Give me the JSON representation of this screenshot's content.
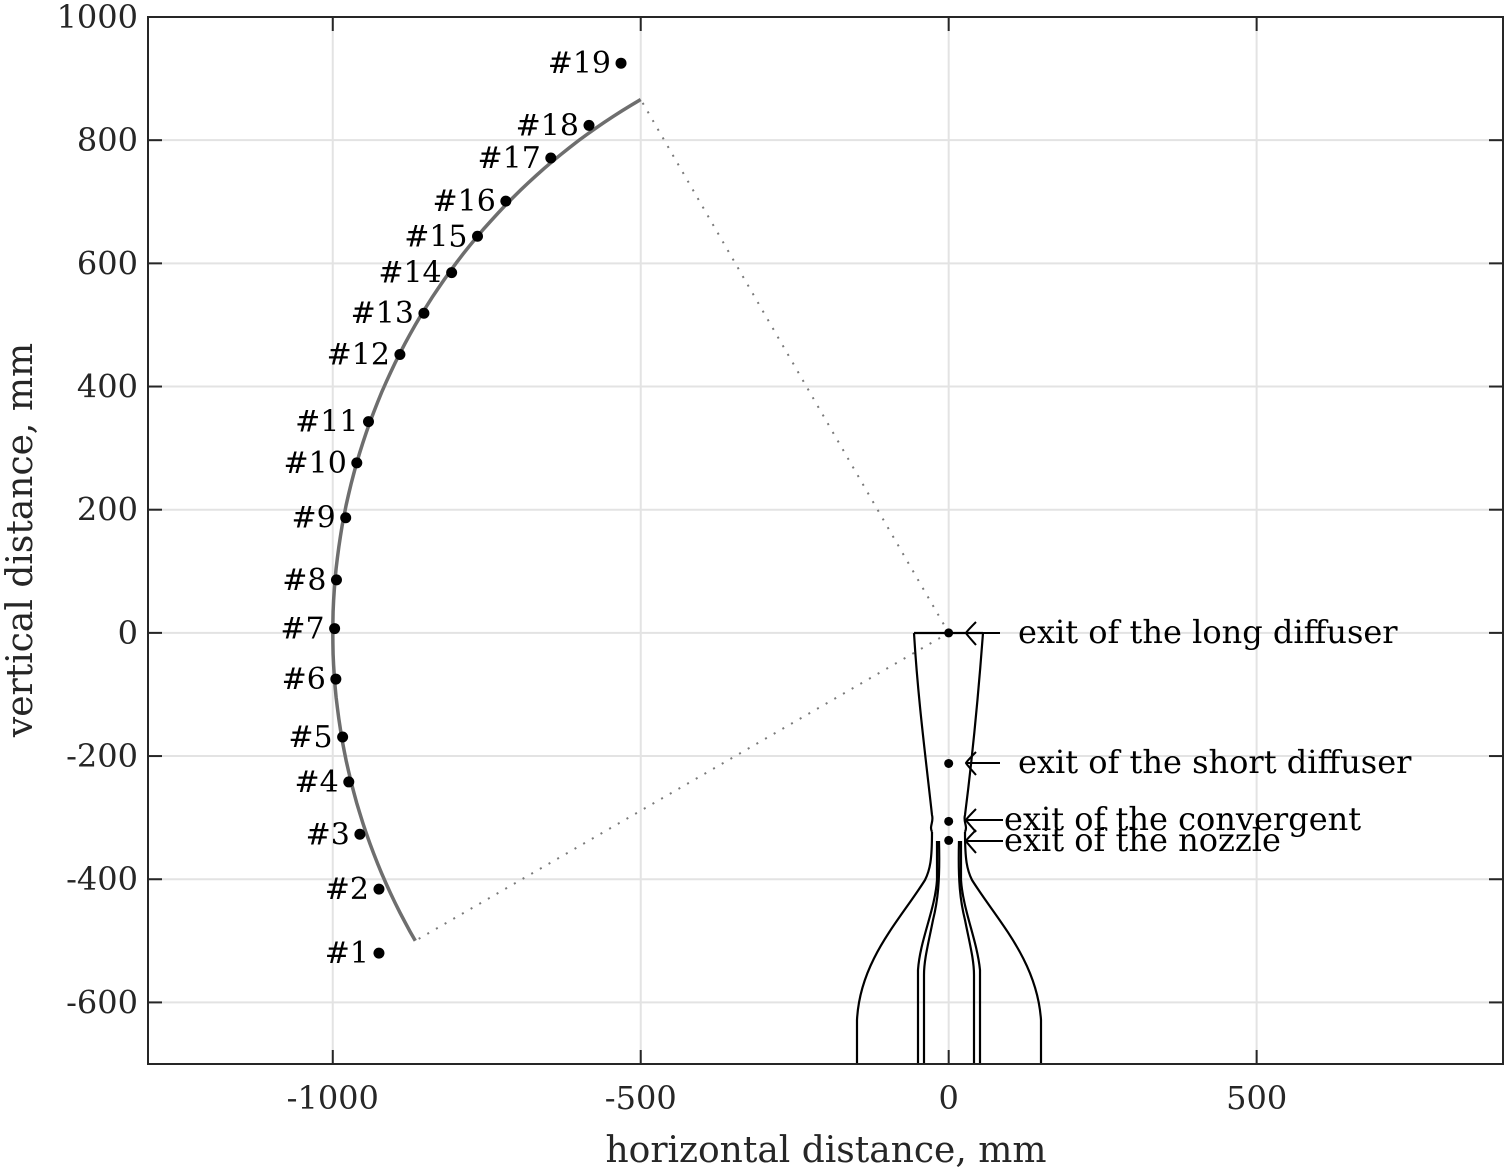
{
  "chart_data": {
    "type": "scatter",
    "title": "",
    "xlabel": "horizontal distance, mm",
    "ylabel": "vertical distance, mm",
    "xlim": [
      -1300,
      900
    ],
    "ylim": [
      -700,
      1000
    ],
    "grid": true,
    "xticks": [
      -1000,
      -500,
      0,
      500
    ],
    "xtick_labels": [
      "-1000",
      "-500",
      "0",
      "500"
    ],
    "yticks": [
      -600,
      -400,
      -200,
      0,
      200,
      400,
      600,
      800,
      1000
    ],
    "ytick_labels": [
      "-600",
      "-400",
      "-200",
      "0",
      "200",
      "400",
      "600",
      "800",
      "1000"
    ],
    "measurement_points": [
      {
        "label": "#1",
        "x": -925,
        "y": -520
      },
      {
        "label": "#2",
        "x": -925,
        "y": -416
      },
      {
        "label": "#3",
        "x": -956,
        "y": -327
      },
      {
        "label": "#4",
        "x": -974,
        "y": -242
      },
      {
        "label": "#5",
        "x": -984,
        "y": -169
      },
      {
        "label": "#6",
        "x": -995,
        "y": -75
      },
      {
        "label": "#7",
        "x": -997,
        "y": 7
      },
      {
        "label": "#8",
        "x": -994,
        "y": 86
      },
      {
        "label": "#9",
        "x": -979,
        "y": 187
      },
      {
        "label": "#10",
        "x": -961,
        "y": 276
      },
      {
        "label": "#11",
        "x": -942,
        "y": 343
      },
      {
        "label": "#12",
        "x": -891,
        "y": 452
      },
      {
        "label": "#13",
        "x": -852,
        "y": 519
      },
      {
        "label": "#14",
        "x": -807,
        "y": 585
      },
      {
        "label": "#15",
        "x": -765,
        "y": 644
      },
      {
        "label": "#16",
        "x": -719,
        "y": 701
      },
      {
        "label": "#17",
        "x": -646,
        "y": 771
      },
      {
        "label": "#18",
        "x": -584,
        "y": 824
      },
      {
        "label": "#19",
        "x": -532,
        "y": 925
      }
    ],
    "arc": {
      "center": [
        0,
        0
      ],
      "radius": 1000,
      "start_deg": 210,
      "end_deg": 120,
      "color": "#6e6e6e"
    },
    "dotted_lines": [
      {
        "from": [
          0,
          0
        ],
        "to": [
          -500,
          866
        ]
      },
      {
        "from": [
          0,
          0
        ],
        "to": [
          -866,
          -500
        ]
      }
    ],
    "nozzle_markers": [
      {
        "label": "exit of the long diffuser",
        "x": 0,
        "y": 0
      },
      {
        "label": "exit of the short diffuser",
        "x": 0,
        "y": -212
      },
      {
        "label": "exit of the convergent",
        "x": 0,
        "y": -306
      },
      {
        "label": "exit of the nozzle",
        "x": 0,
        "y": -337
      }
    ]
  },
  "annotations": {
    "long_diffuser": "exit of the long diffuser",
    "short_diffuser": "exit of the short diffuser",
    "convergent": "exit of the convergent",
    "nozzle": "exit of the nozzle"
  },
  "colors": {
    "axis": "#262626",
    "grid": "#e3e3e3",
    "arc": "#6e6e6e",
    "points": "#000000",
    "dotted": "#7a7a7a"
  }
}
